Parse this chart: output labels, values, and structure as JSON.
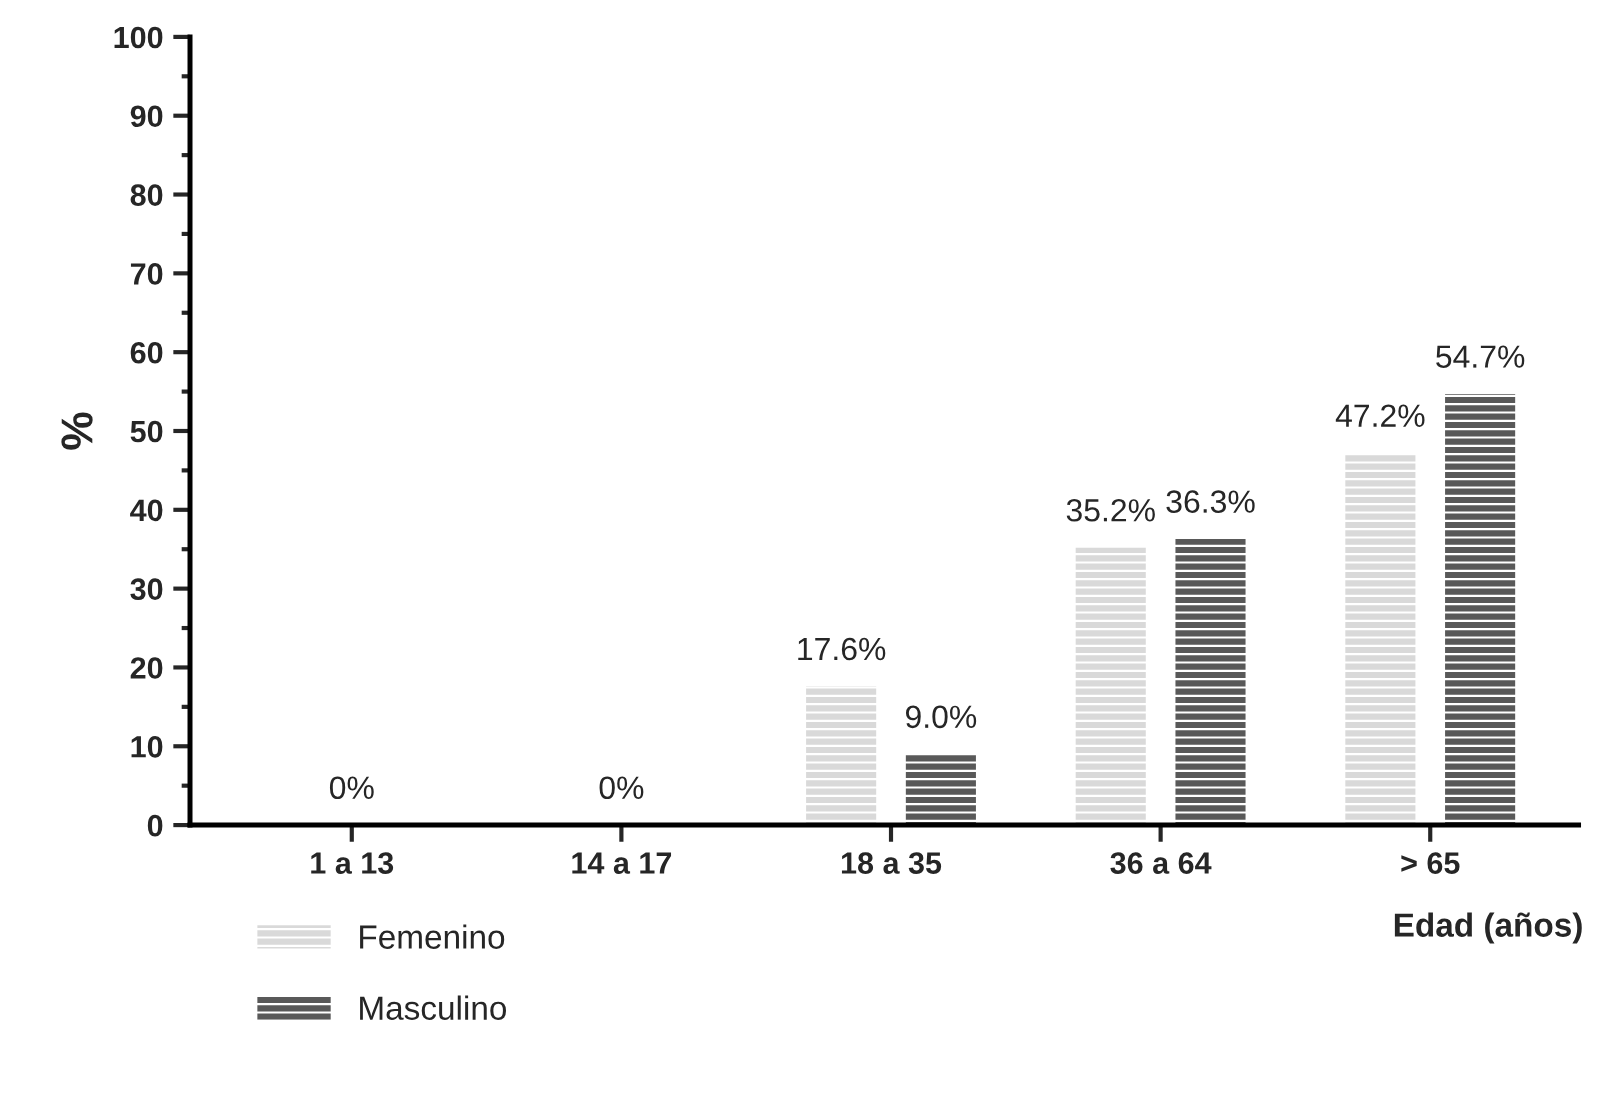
{
  "chart_data": {
    "type": "bar",
    "ylabel": "%",
    "xlabel": "Edad (años)",
    "categories": [
      "1 a 13",
      "14 a 17",
      "18 a 35",
      "36 a 64",
      "> 65"
    ],
    "series": [
      {
        "name": "Femenino",
        "color": "#d9d9d9",
        "values": [
          0,
          0,
          17.6,
          35.2,
          47.2
        ],
        "value_labels": [
          "0%",
          "0%",
          "17.6%",
          "35.2%",
          "47.2%"
        ]
      },
      {
        "name": "Masculino",
        "color": "#595959",
        "values": [
          0,
          0,
          9.0,
          36.3,
          54.7
        ],
        "value_labels": [
          null,
          null,
          "9.0%",
          "36.3%",
          "54.7%"
        ]
      }
    ],
    "ylim": [
      0,
      100
    ],
    "yticks": [
      0,
      10,
      20,
      30,
      40,
      50,
      60,
      70,
      80,
      90,
      100
    ],
    "grid": false,
    "legend": "bottom left"
  }
}
